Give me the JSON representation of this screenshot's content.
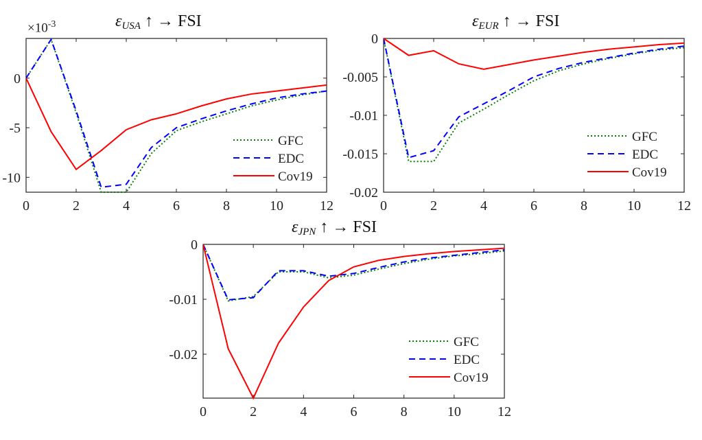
{
  "chart_data": [
    {
      "type": "line",
      "title": {
        "symbol": "ε",
        "subscript": "USA",
        "rest": "↑ →  FSI"
      },
      "y_multiplier": {
        "base": "×10",
        "exponent": "-3"
      },
      "x": [
        0,
        1,
        2,
        3,
        4,
        5,
        6,
        7,
        8,
        9,
        10,
        11,
        12
      ],
      "xlim": [
        0,
        12
      ],
      "ylim": [
        -11.5,
        4
      ],
      "xticks": [
        "0",
        "2",
        "4",
        "6",
        "8",
        "10",
        "12"
      ],
      "yticks": [
        "0",
        "-5",
        "-10"
      ],
      "ytick_values": [
        0,
        -5,
        -10
      ],
      "legend_placement": "lower-right",
      "grid": false,
      "series": [
        {
          "name": "GFC",
          "color": "#008000",
          "style": "dotted",
          "values": [
            0,
            3.9,
            -3.5,
            -11.5,
            -11.5,
            -7.6,
            -5.3,
            -4.4,
            -3.6,
            -2.8,
            -2.2,
            -1.7,
            -1.3
          ]
        },
        {
          "name": "EDC",
          "color": "#0000ff",
          "style": "dashed",
          "values": [
            0,
            3.9,
            -3.3,
            -11.0,
            -10.7,
            -7.0,
            -5.0,
            -4.1,
            -3.3,
            -2.6,
            -2.0,
            -1.6,
            -1.3
          ]
        },
        {
          "name": "Cov19",
          "color": "#ff0000",
          "style": "solid",
          "values": [
            0,
            -5.4,
            -9.2,
            -7.3,
            -5.2,
            -4.2,
            -3.6,
            -2.8,
            -2.1,
            -1.6,
            -1.3,
            -1.0,
            -0.7
          ]
        }
      ]
    },
    {
      "type": "line",
      "title": {
        "symbol": "ε",
        "subscript": "EUR",
        "rest": "↑ →  FSI"
      },
      "x": [
        0,
        1,
        2,
        3,
        4,
        5,
        6,
        7,
        8,
        9,
        10,
        11,
        12
      ],
      "xlim": [
        0,
        12
      ],
      "ylim": [
        -0.02,
        0
      ],
      "xticks": [
        "0",
        "2",
        "4",
        "6",
        "8",
        "10",
        "12"
      ],
      "yticks": [
        "0",
        "-0.005",
        "-0.01",
        "-0.015",
        "-0.02"
      ],
      "ytick_values": [
        0,
        -0.005,
        -0.01,
        -0.015,
        -0.02
      ],
      "legend_placement": "lower-right",
      "grid": false,
      "series": [
        {
          "name": "GFC",
          "color": "#008000",
          "style": "dotted",
          "values": [
            0,
            -0.016,
            -0.016,
            -0.011,
            -0.0092,
            -0.0073,
            -0.0055,
            -0.0042,
            -0.0033,
            -0.0026,
            -0.002,
            -0.0015,
            -0.0012
          ]
        },
        {
          "name": "EDC",
          "color": "#0000ff",
          "style": "dashed",
          "values": [
            0,
            -0.0155,
            -0.0146,
            -0.0102,
            -0.0085,
            -0.0068,
            -0.005,
            -0.0039,
            -0.0031,
            -0.0025,
            -0.0019,
            -0.0014,
            -0.001
          ]
        },
        {
          "name": "Cov19",
          "color": "#ff0000",
          "style": "solid",
          "values": [
            0,
            -0.0022,
            -0.0016,
            -0.0033,
            -0.004,
            -0.0034,
            -0.0028,
            -0.0023,
            -0.0018,
            -0.0014,
            -0.0011,
            -0.0008,
            -0.0006
          ]
        }
      ]
    },
    {
      "type": "line",
      "title": {
        "symbol": "ε",
        "subscript": "JPN",
        "rest": "↑ →  FSI"
      },
      "x": [
        0,
        1,
        2,
        3,
        4,
        5,
        6,
        7,
        8,
        9,
        10,
        11,
        12
      ],
      "xlim": [
        0,
        12
      ],
      "ylim": [
        -0.028,
        0
      ],
      "xticks": [
        "0",
        "2",
        "4",
        "6",
        "8",
        "10",
        "12"
      ],
      "yticks": [
        "0",
        "-0.01",
        "-0.02"
      ],
      "ytick_values": [
        0,
        -0.01,
        -0.02
      ],
      "legend_placement": "lower-right",
      "grid": false,
      "series": [
        {
          "name": "GFC",
          "color": "#008000",
          "style": "dotted",
          "values": [
            0,
            -0.0103,
            -0.0095,
            -0.005,
            -0.005,
            -0.0061,
            -0.0056,
            -0.0045,
            -0.0035,
            -0.0027,
            -0.0021,
            -0.0017,
            -0.0012
          ]
        },
        {
          "name": "EDC",
          "color": "#0000ff",
          "style": "dashed",
          "values": [
            0,
            -0.0101,
            -0.0097,
            -0.0048,
            -0.0048,
            -0.0058,
            -0.0053,
            -0.0042,
            -0.0032,
            -0.0025,
            -0.002,
            -0.0015,
            -0.001
          ]
        },
        {
          "name": "Cov19",
          "color": "#ff0000",
          "style": "solid",
          "values": [
            0,
            -0.019,
            -0.028,
            -0.018,
            -0.0114,
            -0.0066,
            -0.0041,
            -0.0029,
            -0.0022,
            -0.0017,
            -0.0013,
            -0.001,
            -0.0007
          ]
        }
      ]
    }
  ]
}
